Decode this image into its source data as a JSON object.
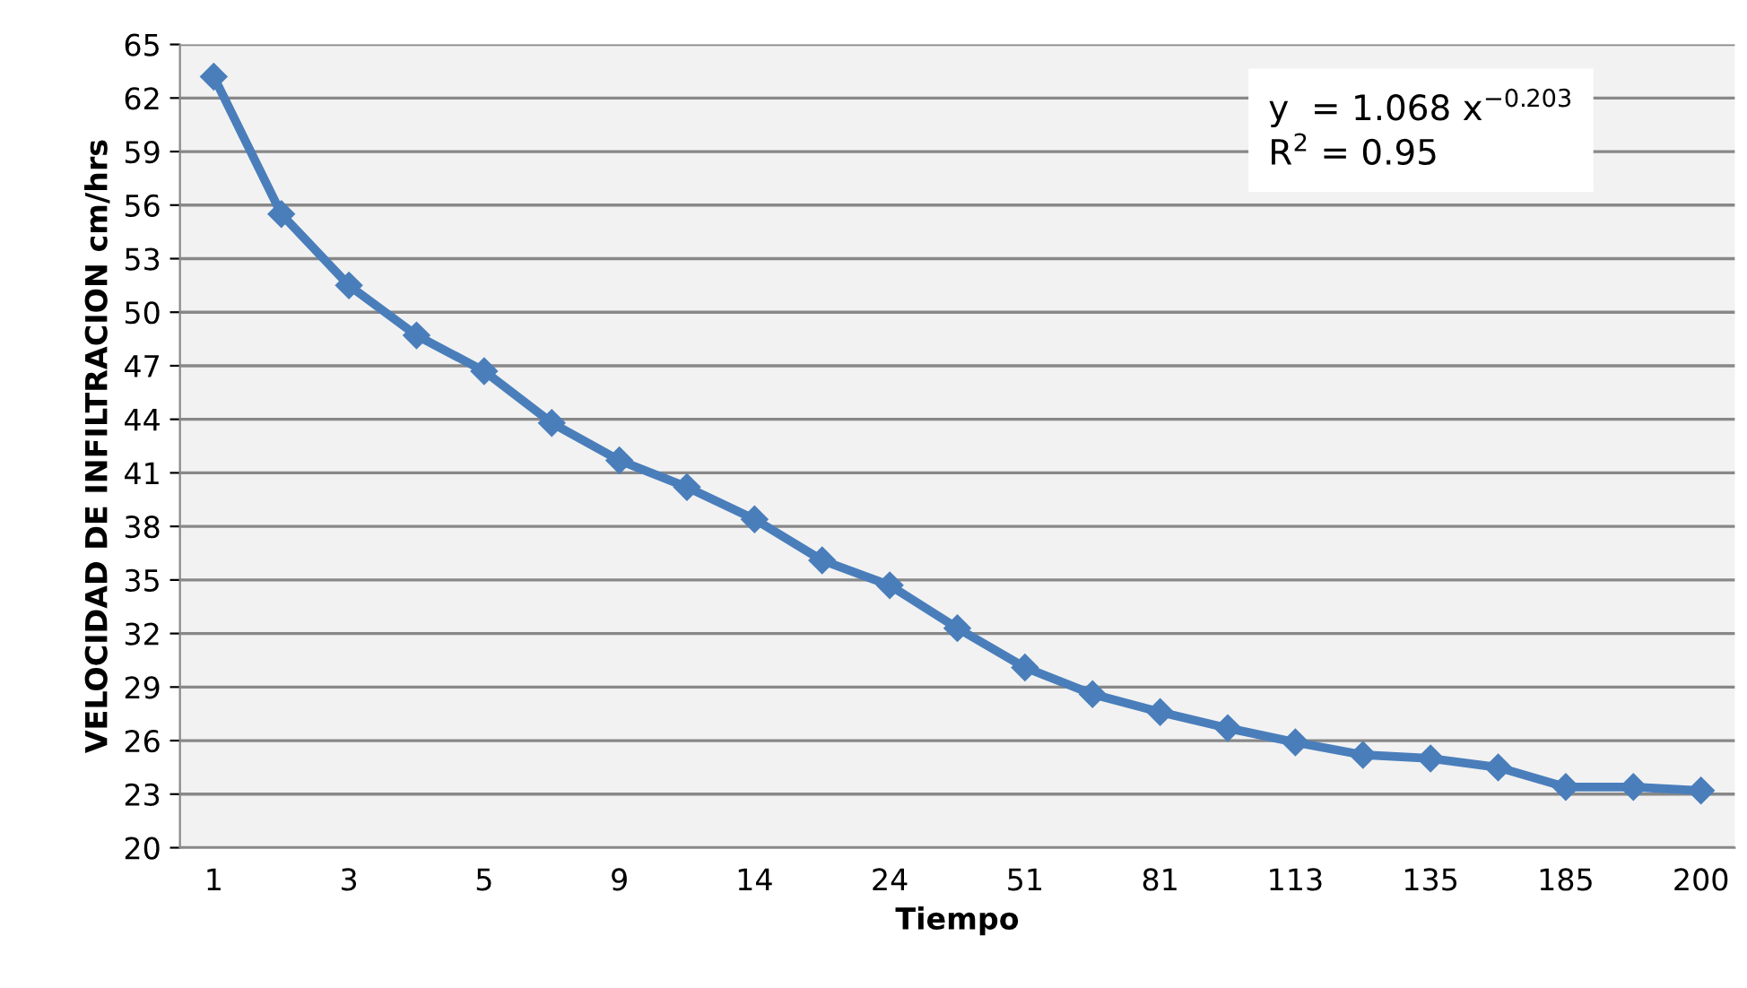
{
  "chart_data": {
    "type": "line",
    "xlabel": "Tiempo",
    "ylabel": "VELOCIDAD DE INFILTRACION cm/hrs",
    "categories": [
      "1",
      null,
      "3",
      null,
      "5",
      null,
      "9",
      null,
      "14",
      null,
      "24",
      null,
      "51",
      null,
      "81",
      null,
      "113",
      null,
      "135",
      null,
      "185",
      null,
      "200"
    ],
    "series": [
      {
        "color": "#4a7ebb",
        "values": [
          63.2,
          55.5,
          51.5,
          48.7,
          46.7,
          43.8,
          41.7,
          40.2,
          38.4,
          36.1,
          34.7,
          32.3,
          30.1,
          28.6,
          27.6,
          26.7,
          25.9,
          25.2,
          25.0,
          24.5,
          23.4,
          23.4,
          23.2
        ]
      }
    ],
    "ylim": [
      20,
      65
    ],
    "yticks": [
      20,
      23,
      26,
      29,
      32,
      35,
      38,
      41,
      44,
      47,
      50,
      53,
      56,
      59,
      62,
      65
    ],
    "grid": "y",
    "marker": "diamond",
    "line_style": "solid",
    "annotations": [
      "y  = 1.068 x$^{−0.203}$",
      "R$^{2}$ = 0.95"
    ]
  }
}
